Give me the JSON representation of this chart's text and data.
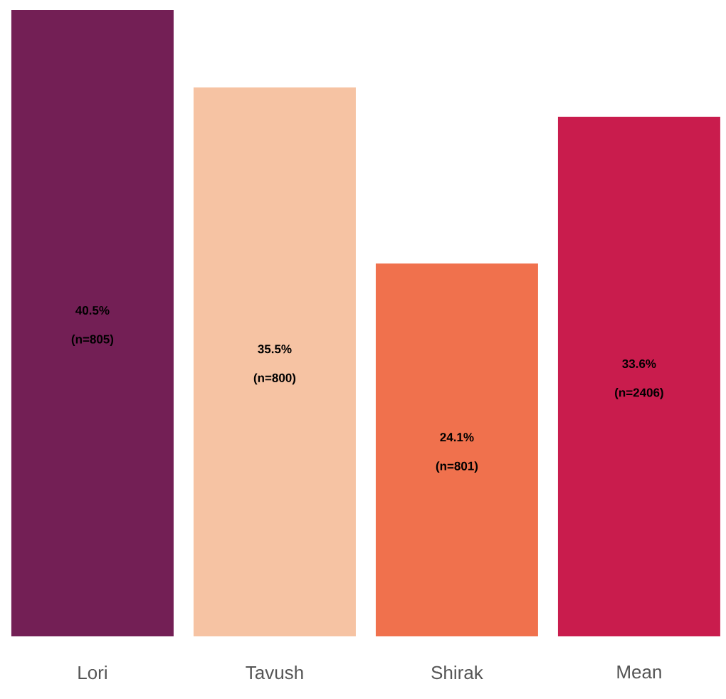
{
  "chart_data": {
    "type": "bar",
    "categories": [
      "Lori",
      "Tavush",
      "Shirak",
      "Mean"
    ],
    "values": [
      40.5,
      35.5,
      24.1,
      33.6
    ],
    "colors": [
      "#731f55",
      "#f6c3a3",
      "#f0714d",
      "#c91c4d"
    ],
    "value_labels": [
      "40.5%",
      "35.5%",
      "24.1%",
      "33.6%"
    ],
    "annotations": [
      "(n=805)",
      "(n=800)",
      "(n=801)",
      "(n=2406)"
    ],
    "tick_labels": "x"
  }
}
